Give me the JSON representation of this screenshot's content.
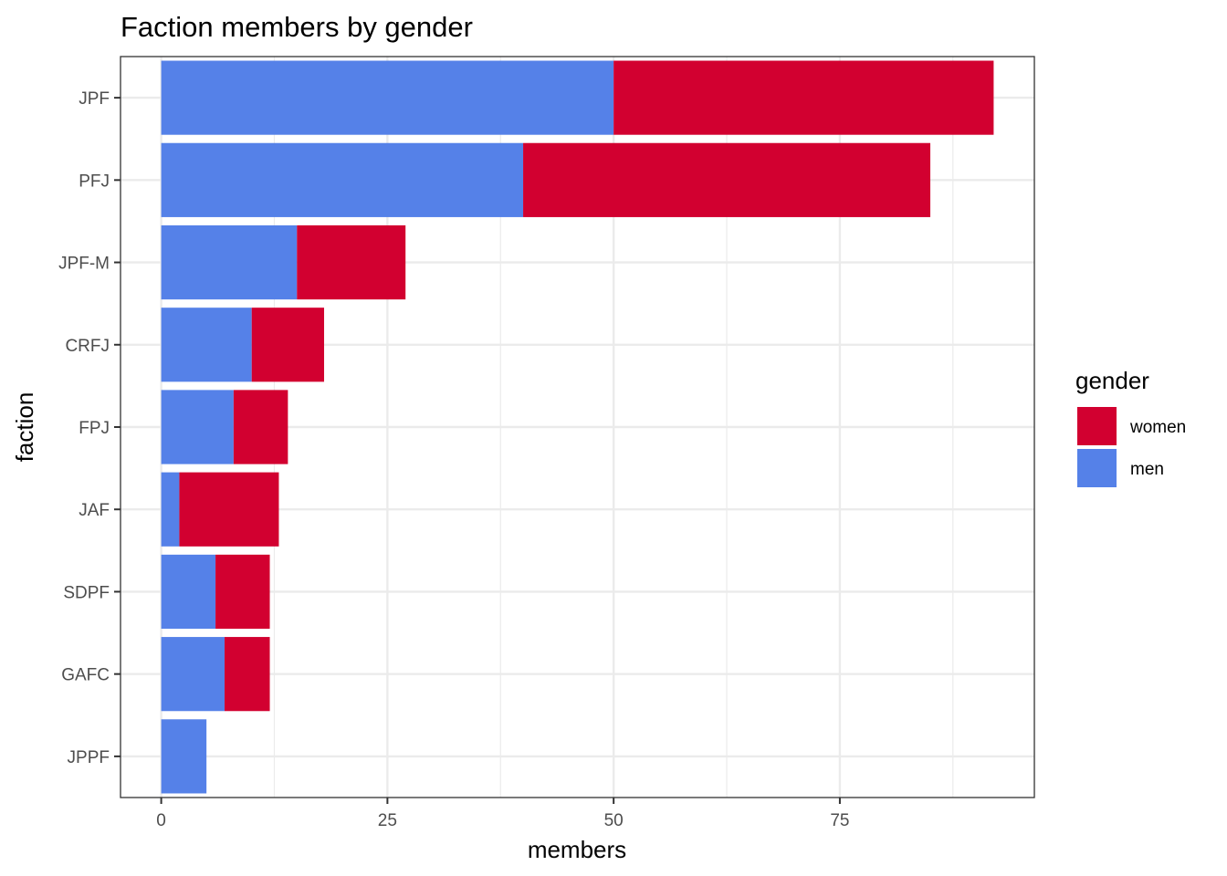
{
  "chart_data": {
    "type": "bar",
    "orientation": "horizontal",
    "stacked": true,
    "title": "Faction members by gender",
    "xlabel": "members",
    "ylabel": "faction",
    "categories": [
      "JPF",
      "PFJ",
      "JPF-M",
      "CRFJ",
      "FPJ",
      "JAF",
      "SDPF",
      "GAFC",
      "JPPF"
    ],
    "series": [
      {
        "name": "men",
        "color": "#5581E8",
        "values": [
          50,
          40,
          15,
          10,
          8,
          2,
          6,
          7,
          5
        ]
      },
      {
        "name": "women",
        "color": "#D20030",
        "values": [
          42,
          45,
          12,
          8,
          6,
          11,
          6,
          5,
          0
        ]
      }
    ],
    "xlim": [
      -4.5,
      96.5
    ],
    "xticks": [
      0,
      25,
      50,
      75
    ],
    "xtick_labels": [
      "0",
      "25",
      "50",
      "75"
    ],
    "grid": true,
    "legend": {
      "title": "gender",
      "position": "right",
      "entries": [
        {
          "label": "women",
          "color": "#D20030"
        },
        {
          "label": "men",
          "color": "#5581E8"
        }
      ]
    }
  }
}
